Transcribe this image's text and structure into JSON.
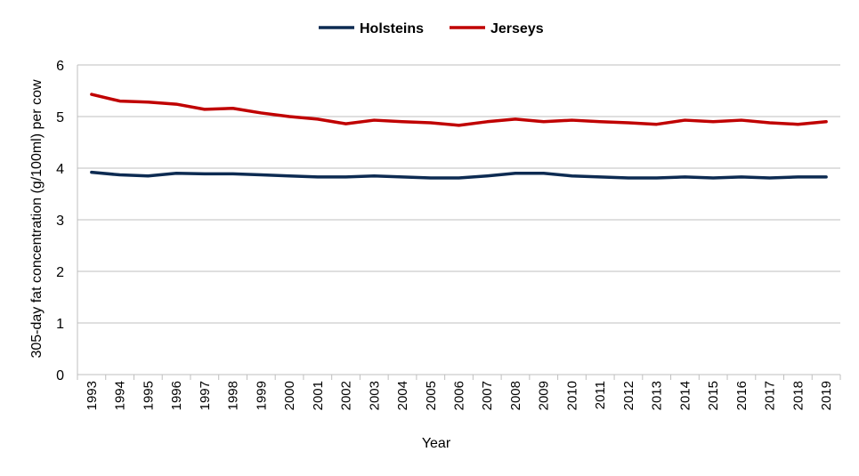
{
  "chart_data": {
    "type": "line",
    "xlabel": "Year",
    "ylabel": "305-day fat concentration (g/100ml) per cow",
    "ylim": [
      0,
      6
    ],
    "yticks": [
      "0",
      "1",
      "2",
      "3",
      "4",
      "5",
      "6"
    ],
    "grid": "horizontal",
    "legend_position": "top",
    "x": [
      "1993",
      "1994",
      "1995",
      "1996",
      "1997",
      "1998",
      "1999",
      "2000",
      "2001",
      "2002",
      "2003",
      "2004",
      "2005",
      "2006",
      "2007",
      "2008",
      "2009",
      "2010",
      "2011",
      "2012",
      "2013",
      "2014",
      "2015",
      "2016",
      "2017",
      "2018",
      "2019"
    ],
    "series": [
      {
        "name": "Holsteins",
        "color": "#0d2b52",
        "values": [
          3.92,
          3.87,
          3.85,
          3.9,
          3.89,
          3.89,
          3.87,
          3.85,
          3.83,
          3.83,
          3.85,
          3.83,
          3.81,
          3.81,
          3.85,
          3.9,
          3.9,
          3.85,
          3.83,
          3.81,
          3.81,
          3.83,
          3.81,
          3.83,
          3.81,
          3.83,
          3.83
        ]
      },
      {
        "name": "Jerseys",
        "color": "#c00000",
        "values": [
          5.43,
          5.3,
          5.28,
          5.24,
          5.14,
          5.16,
          5.07,
          5.0,
          4.95,
          4.86,
          4.93,
          4.9,
          4.88,
          4.83,
          4.9,
          4.95,
          4.9,
          4.93,
          4.9,
          4.88,
          4.85,
          4.93,
          4.9,
          4.93,
          4.88,
          4.85,
          4.9
        ]
      }
    ]
  }
}
